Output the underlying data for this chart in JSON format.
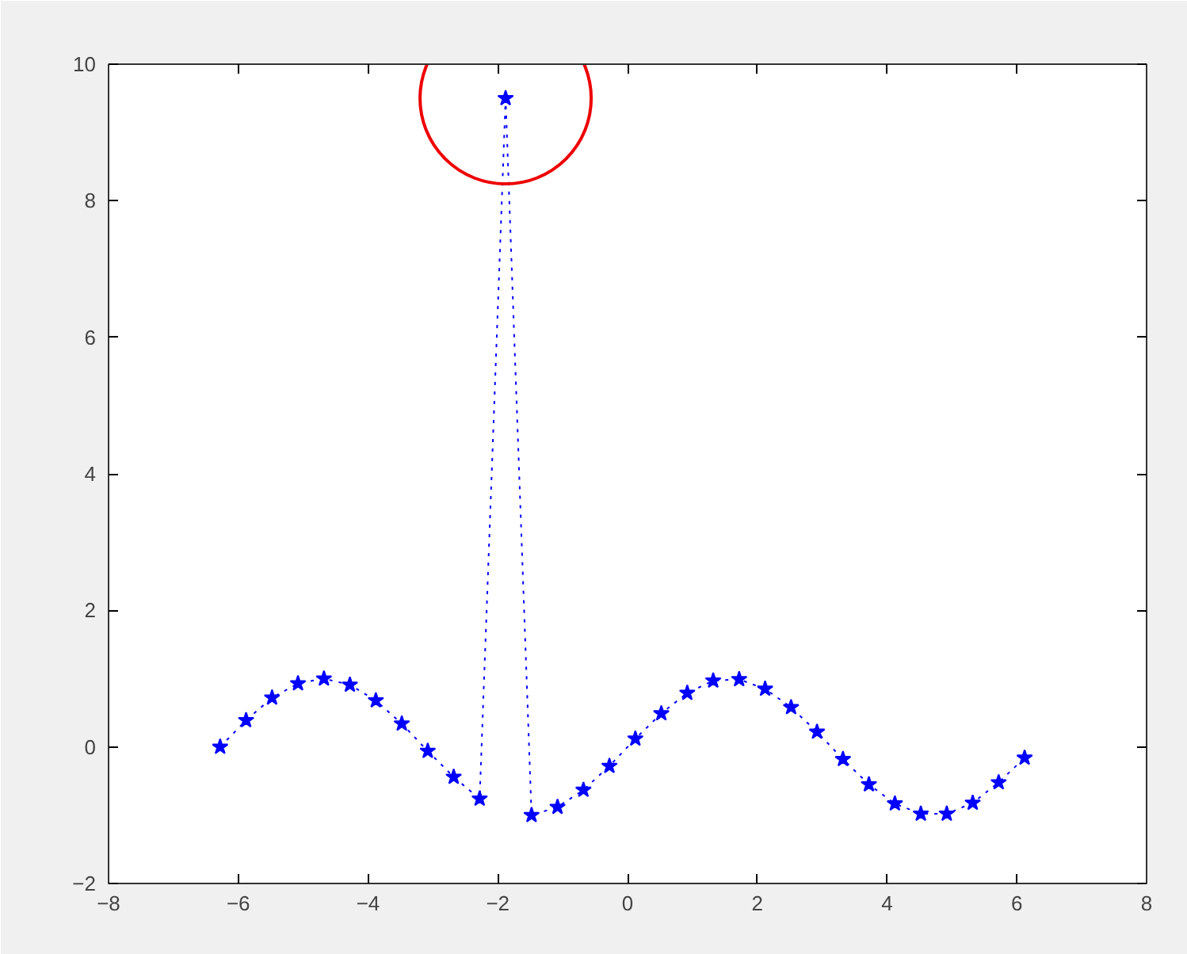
{
  "chart_data": {
    "type": "line",
    "x": [
      -6.28,
      -5.88,
      -5.48,
      -5.08,
      -4.68,
      -4.28,
      -3.88,
      -3.48,
      -3.08,
      -2.68,
      -2.28,
      -1.88,
      -1.48,
      -1.08,
      -0.68,
      -0.28,
      0.12,
      0.52,
      0.92,
      1.32,
      1.72,
      2.12,
      2.52,
      2.92,
      3.32,
      3.72,
      4.12,
      4.52,
      4.92,
      5.32,
      5.72,
      6.12
    ],
    "series": [
      {
        "color": "#0000ff",
        "values": [
          0.0,
          0.39,
          0.72,
          0.93,
          1.0,
          0.91,
          0.68,
          0.34,
          -0.06,
          -0.44,
          -0.76,
          9.5,
          -1.0,
          -0.88,
          -0.63,
          -0.28,
          0.12,
          0.49,
          0.79,
          0.97,
          0.99,
          0.85,
          0.58,
          0.22,
          -0.18,
          -0.55,
          -0.83,
          -0.98,
          -0.98,
          -0.82,
          -0.52,
          -0.16
        ]
      }
    ],
    "xlim": [
      -8,
      8
    ],
    "xticks": [
      -8,
      -6,
      -4,
      -2,
      0,
      2,
      4,
      6,
      8
    ],
    "ylim": [
      -2,
      10
    ],
    "yticks": [
      -2,
      0,
      2,
      4,
      6,
      8,
      10
    ],
    "grid": false,
    "marker": "star",
    "line_style": "dotted"
  }
}
